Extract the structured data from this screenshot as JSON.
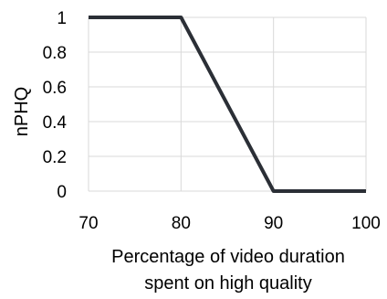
{
  "chart_data": {
    "type": "line",
    "title": "",
    "xlabel_lines": [
      "Percentage of video duration",
      "spent on high quality"
    ],
    "ylabel": "nPHQ",
    "xlim": [
      70,
      100
    ],
    "ylim": [
      0,
      1
    ],
    "x_ticks": [
      70,
      80,
      90,
      100
    ],
    "y_ticks": [
      "0",
      "0.2",
      "0.4",
      "0.6",
      "0.8",
      "1"
    ],
    "grid": true,
    "legend": "none",
    "series": [
      {
        "color": "#2b2f36",
        "points": [
          {
            "x": 70,
            "y": 1
          },
          {
            "x": 80,
            "y": 1
          },
          {
            "x": 90,
            "y": 0
          },
          {
            "x": 100,
            "y": 0
          }
        ]
      }
    ]
  }
}
